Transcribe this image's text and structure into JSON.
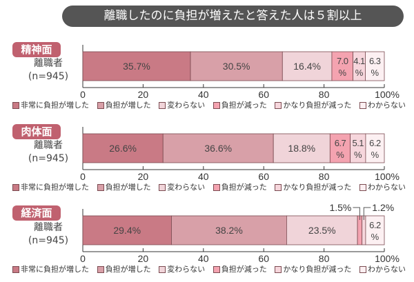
{
  "title": "離職したのに負担が増えたと答えた人は５割以上",
  "colors": [
    "#c97a85",
    "#d8a0a8",
    "#f0d4d9",
    "#f4a3b0",
    "#f6d6dc",
    "#fcf0f2"
  ],
  "chart_data": [
    {
      "type": "bar",
      "stacked": true,
      "orientation": "horizontal",
      "panel": "精神面",
      "group": "離職者",
      "n": "(n=945)",
      "categories": [
        "非常に負担が増した",
        "負担が増した",
        "変わらない",
        "負担が減った",
        "かなり負担が減った",
        "わからない"
      ],
      "values": [
        35.7,
        30.5,
        16.4,
        7.0,
        4.1,
        6.3
      ],
      "labels": [
        "35.7%",
        "30.5%",
        "16.4%",
        "7.0\n%",
        "4.1\n%",
        "6.3\n%"
      ],
      "xticks": [
        "0",
        "20",
        "40",
        "60",
        "80",
        "100%"
      ],
      "xlim": [
        0,
        100
      ]
    },
    {
      "type": "bar",
      "stacked": true,
      "orientation": "horizontal",
      "panel": "肉体面",
      "group": "離職者",
      "n": "(n=945)",
      "categories": [
        "非常に負担が増した",
        "負担が増した",
        "変わらない",
        "負担が減った",
        "かなり負担が減った",
        "わからない"
      ],
      "values": [
        26.6,
        36.6,
        18.8,
        6.7,
        5.1,
        6.2
      ],
      "labels": [
        "26.6%",
        "36.6%",
        "18.8%",
        "6.7\n%",
        "5.1\n%",
        "6.2\n%"
      ],
      "xticks": [
        "0",
        "20",
        "40",
        "60",
        "80",
        "100%"
      ],
      "xlim": [
        0,
        100
      ]
    },
    {
      "type": "bar",
      "stacked": true,
      "orientation": "horizontal",
      "panel": "経済面",
      "group": "離職者",
      "n": "(n=945)",
      "categories": [
        "非常に負担が増した",
        "負担が増した",
        "変わらない",
        "負担が減った",
        "かなり負担が減った",
        "わからない"
      ],
      "values": [
        29.4,
        38.2,
        23.5,
        1.5,
        1.2,
        6.2
      ],
      "labels": [
        "29.4%",
        "38.2%",
        "23.5%",
        "1.5%",
        "1.2%",
        "6.2\n%"
      ],
      "xticks": [
        "0",
        "20",
        "40",
        "60",
        "80",
        "100%"
      ],
      "xlim": [
        0,
        100
      ]
    }
  ]
}
